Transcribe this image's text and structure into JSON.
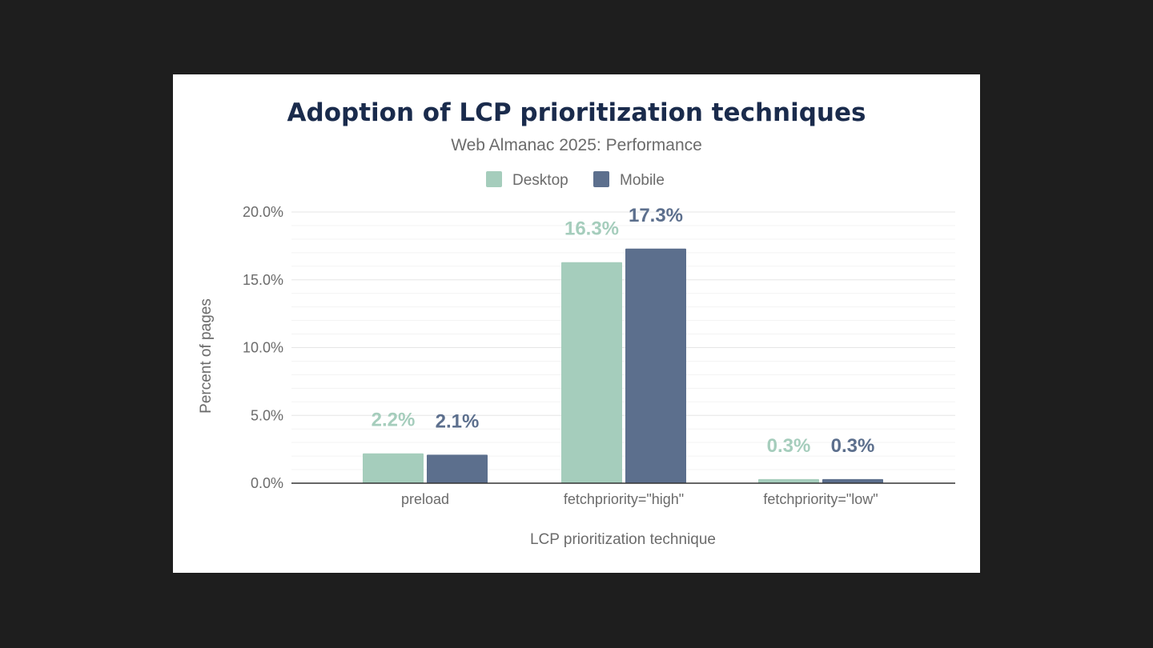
{
  "chart_data": {
    "type": "bar",
    "title": "Adoption of LCP prioritization techniques",
    "subtitle": "Web Almanac 2025: Performance",
    "xlabel": "LCP prioritization technique",
    "ylabel": "Percent of pages",
    "categories": [
      "preload",
      "fetchpriority=\"high\"",
      "fetchpriority=\"low\""
    ],
    "series": [
      {
        "name": "Desktop",
        "color": "#a5cdbc",
        "values": [
          2.2,
          16.3,
          0.3
        ],
        "labels": [
          "2.2%",
          "16.3%",
          "0.3%"
        ]
      },
      {
        "name": "Mobile",
        "color": "#5c6f8d",
        "values": [
          2.1,
          17.3,
          0.3
        ],
        "labels": [
          "2.1%",
          "17.3%",
          "0.3%"
        ]
      }
    ],
    "ylim": [
      0,
      20
    ],
    "yticks": [
      0,
      5,
      10,
      15,
      20
    ],
    "ytick_labels": [
      "0.0%",
      "5.0%",
      "10.0%",
      "15.0%",
      "20.0%"
    ],
    "grid": true,
    "legend": "top-center"
  }
}
